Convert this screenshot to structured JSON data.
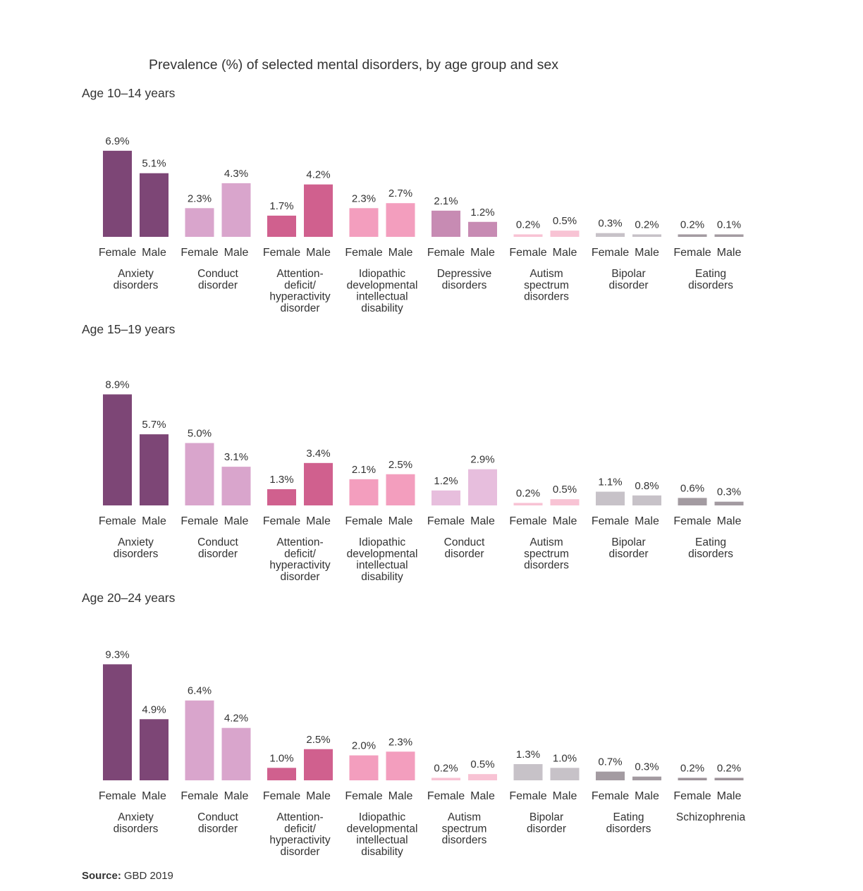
{
  "title": "Prevalence (%) of selected mental disorders, by age group and sex",
  "source": {
    "label": "Source:",
    "text": "GBD 2019"
  },
  "sex_labels": {
    "female": "Female",
    "male": "Male"
  },
  "colors": {
    "Anxiety disorders": "#7d4676",
    "Conduct disorder": "#d9a5cc",
    "Attention-deficit/hyperactivity disorder": "#d0608e",
    "Idiopathic developmental intellectual disability": "#f39ebe",
    "Depressive disorders": "#c78bb3",
    "Autism spectrum disorders": "#f8c3d4",
    "Bipolar disorder": "#c7c2c8",
    "Eating disorders": "#a39ba1",
    "Schizophrenia": "#9e9399",
    "Conduct disorder (light)": "#e7bedd"
  },
  "chart_data": [
    {
      "type": "bar",
      "title": "Age 10–14 years",
      "series": [
        {
          "name": "Female"
        },
        {
          "name": "Male"
        }
      ],
      "groups": [
        {
          "label_lines": [
            "Anxiety",
            "disorders"
          ],
          "color_key": "Anxiety disorders",
          "female": 6.9,
          "male": 5.1,
          "female_label": "6.9%",
          "male_label": "5.1%"
        },
        {
          "label_lines": [
            "Conduct",
            "disorder"
          ],
          "color_key": "Conduct disorder",
          "female": 2.3,
          "male": 4.3,
          "female_label": "2.3%",
          "male_label": "4.3%"
        },
        {
          "label_lines": [
            "Attention-",
            "deficit/",
            "hyperactivity",
            "disorder"
          ],
          "color_key": "Attention-deficit/hyperactivity disorder",
          "female": 1.7,
          "male": 4.2,
          "female_label": "1.7%",
          "male_label": "4.2%"
        },
        {
          "label_lines": [
            "Idiopathic",
            "developmental",
            "intellectual",
            "disability"
          ],
          "color_key": "Idiopathic developmental intellectual disability",
          "female": 2.3,
          "male": 2.7,
          "female_label": "2.3%",
          "male_label": "2.7%"
        },
        {
          "label_lines": [
            "Depressive",
            "disorders"
          ],
          "color_key": "Depressive disorders",
          "female": 2.1,
          "male": 1.2,
          "female_label": "2.1%",
          "male_label": "1.2%"
        },
        {
          "label_lines": [
            "Autism",
            "spectrum",
            "disorders"
          ],
          "color_key": "Autism spectrum disorders",
          "female": 0.2,
          "male": 0.5,
          "female_label": "0.2%",
          "male_label": "0.5%"
        },
        {
          "label_lines": [
            "Bipolar",
            "disorder"
          ],
          "color_key": "Bipolar disorder",
          "female": 0.3,
          "male": 0.2,
          "female_label": "0.3%",
          "male_label": "0.2%"
        },
        {
          "label_lines": [
            "Eating",
            "disorders"
          ],
          "color_key": "Eating disorders",
          "female": 0.2,
          "male": 0.1,
          "female_label": "0.2%",
          "male_label": "0.1%"
        }
      ]
    },
    {
      "type": "bar",
      "title": "Age 15–19 years",
      "series": [
        {
          "name": "Female"
        },
        {
          "name": "Male"
        }
      ],
      "groups": [
        {
          "label_lines": [
            "Anxiety",
            "disorders"
          ],
          "color_key": "Anxiety disorders",
          "female": 8.9,
          "male": 5.7,
          "female_label": "8.9%",
          "male_label": "5.7%"
        },
        {
          "label_lines": [
            "Conduct",
            "disorder"
          ],
          "color_key": "Conduct disorder",
          "female": 5.0,
          "male": 3.1,
          "female_label": "5.0%",
          "male_label": "3.1%"
        },
        {
          "label_lines": [
            "Attention-",
            "deficit/",
            "hyperactivity",
            "disorder"
          ],
          "color_key": "Attention-deficit/hyperactivity disorder",
          "female": 1.3,
          "male": 3.4,
          "female_label": "1.3%",
          "male_label": "3.4%"
        },
        {
          "label_lines": [
            "Idiopathic",
            "developmental",
            "intellectual",
            "disability"
          ],
          "color_key": "Idiopathic developmental intellectual disability",
          "female": 2.1,
          "male": 2.5,
          "female_label": "2.1%",
          "male_label": "2.5%"
        },
        {
          "label_lines": [
            "Conduct",
            "disorder"
          ],
          "color_key": "Conduct disorder (light)",
          "female": 1.2,
          "male": 2.9,
          "female_label": "1.2%",
          "male_label": "2.9%"
        },
        {
          "label_lines": [
            "Autism",
            "spectrum",
            "disorders"
          ],
          "color_key": "Autism spectrum disorders",
          "female": 0.2,
          "male": 0.5,
          "female_label": "0.2%",
          "male_label": "0.5%"
        },
        {
          "label_lines": [
            "Bipolar",
            "disorder"
          ],
          "color_key": "Bipolar disorder",
          "female": 1.1,
          "male": 0.8,
          "female_label": "1.1%",
          "male_label": "0.8%"
        },
        {
          "label_lines": [
            "Eating",
            "disorders"
          ],
          "color_key": "Eating disorders",
          "female": 0.6,
          "male": 0.3,
          "female_label": "0.6%",
          "male_label": "0.3%"
        }
      ]
    },
    {
      "type": "bar",
      "title": "Age 20–24 years",
      "series": [
        {
          "name": "Female"
        },
        {
          "name": "Male"
        }
      ],
      "groups": [
        {
          "label_lines": [
            "Anxiety",
            "disorders"
          ],
          "color_key": "Anxiety disorders",
          "female": 9.3,
          "male": 4.9,
          "female_label": "9.3%",
          "male_label": "4.9%"
        },
        {
          "label_lines": [
            "Conduct",
            "disorder"
          ],
          "color_key": "Conduct disorder",
          "female": 6.4,
          "male": 4.2,
          "female_label": "6.4%",
          "male_label": "4.2%"
        },
        {
          "label_lines": [
            "Attention-",
            "deficit/",
            "hyperactivity",
            "disorder"
          ],
          "color_key": "Attention-deficit/hyperactivity disorder",
          "female": 1.0,
          "male": 2.5,
          "female_label": "1.0%",
          "male_label": "2.5%"
        },
        {
          "label_lines": [
            "Idiopathic",
            "developmental",
            "intellectual",
            "disability"
          ],
          "color_key": "Idiopathic developmental intellectual disability",
          "female": 2.0,
          "male": 2.3,
          "female_label": "2.0%",
          "male_label": "2.3%"
        },
        {
          "label_lines": [
            "Autism",
            "spectrum",
            "disorders"
          ],
          "color_key": "Autism spectrum disorders",
          "female": 0.2,
          "male": 0.5,
          "female_label": "0.2%",
          "male_label": "0.5%"
        },
        {
          "label_lines": [
            "Bipolar",
            "disorder"
          ],
          "color_key": "Bipolar disorder",
          "female": 1.3,
          "male": 1.0,
          "female_label": "1.3%",
          "male_label": "1.0%"
        },
        {
          "label_lines": [
            "Eating",
            "disorders"
          ],
          "color_key": "Eating disorders",
          "female": 0.7,
          "male": 0.3,
          "female_label": "0.7%",
          "male_label": "0.3%"
        },
        {
          "label_lines": [
            "Schizophrenia"
          ],
          "color_key": "Schizophrenia",
          "female": 0.2,
          "male": 0.2,
          "female_label": "0.2%",
          "male_label": "0.2%"
        }
      ]
    }
  ]
}
